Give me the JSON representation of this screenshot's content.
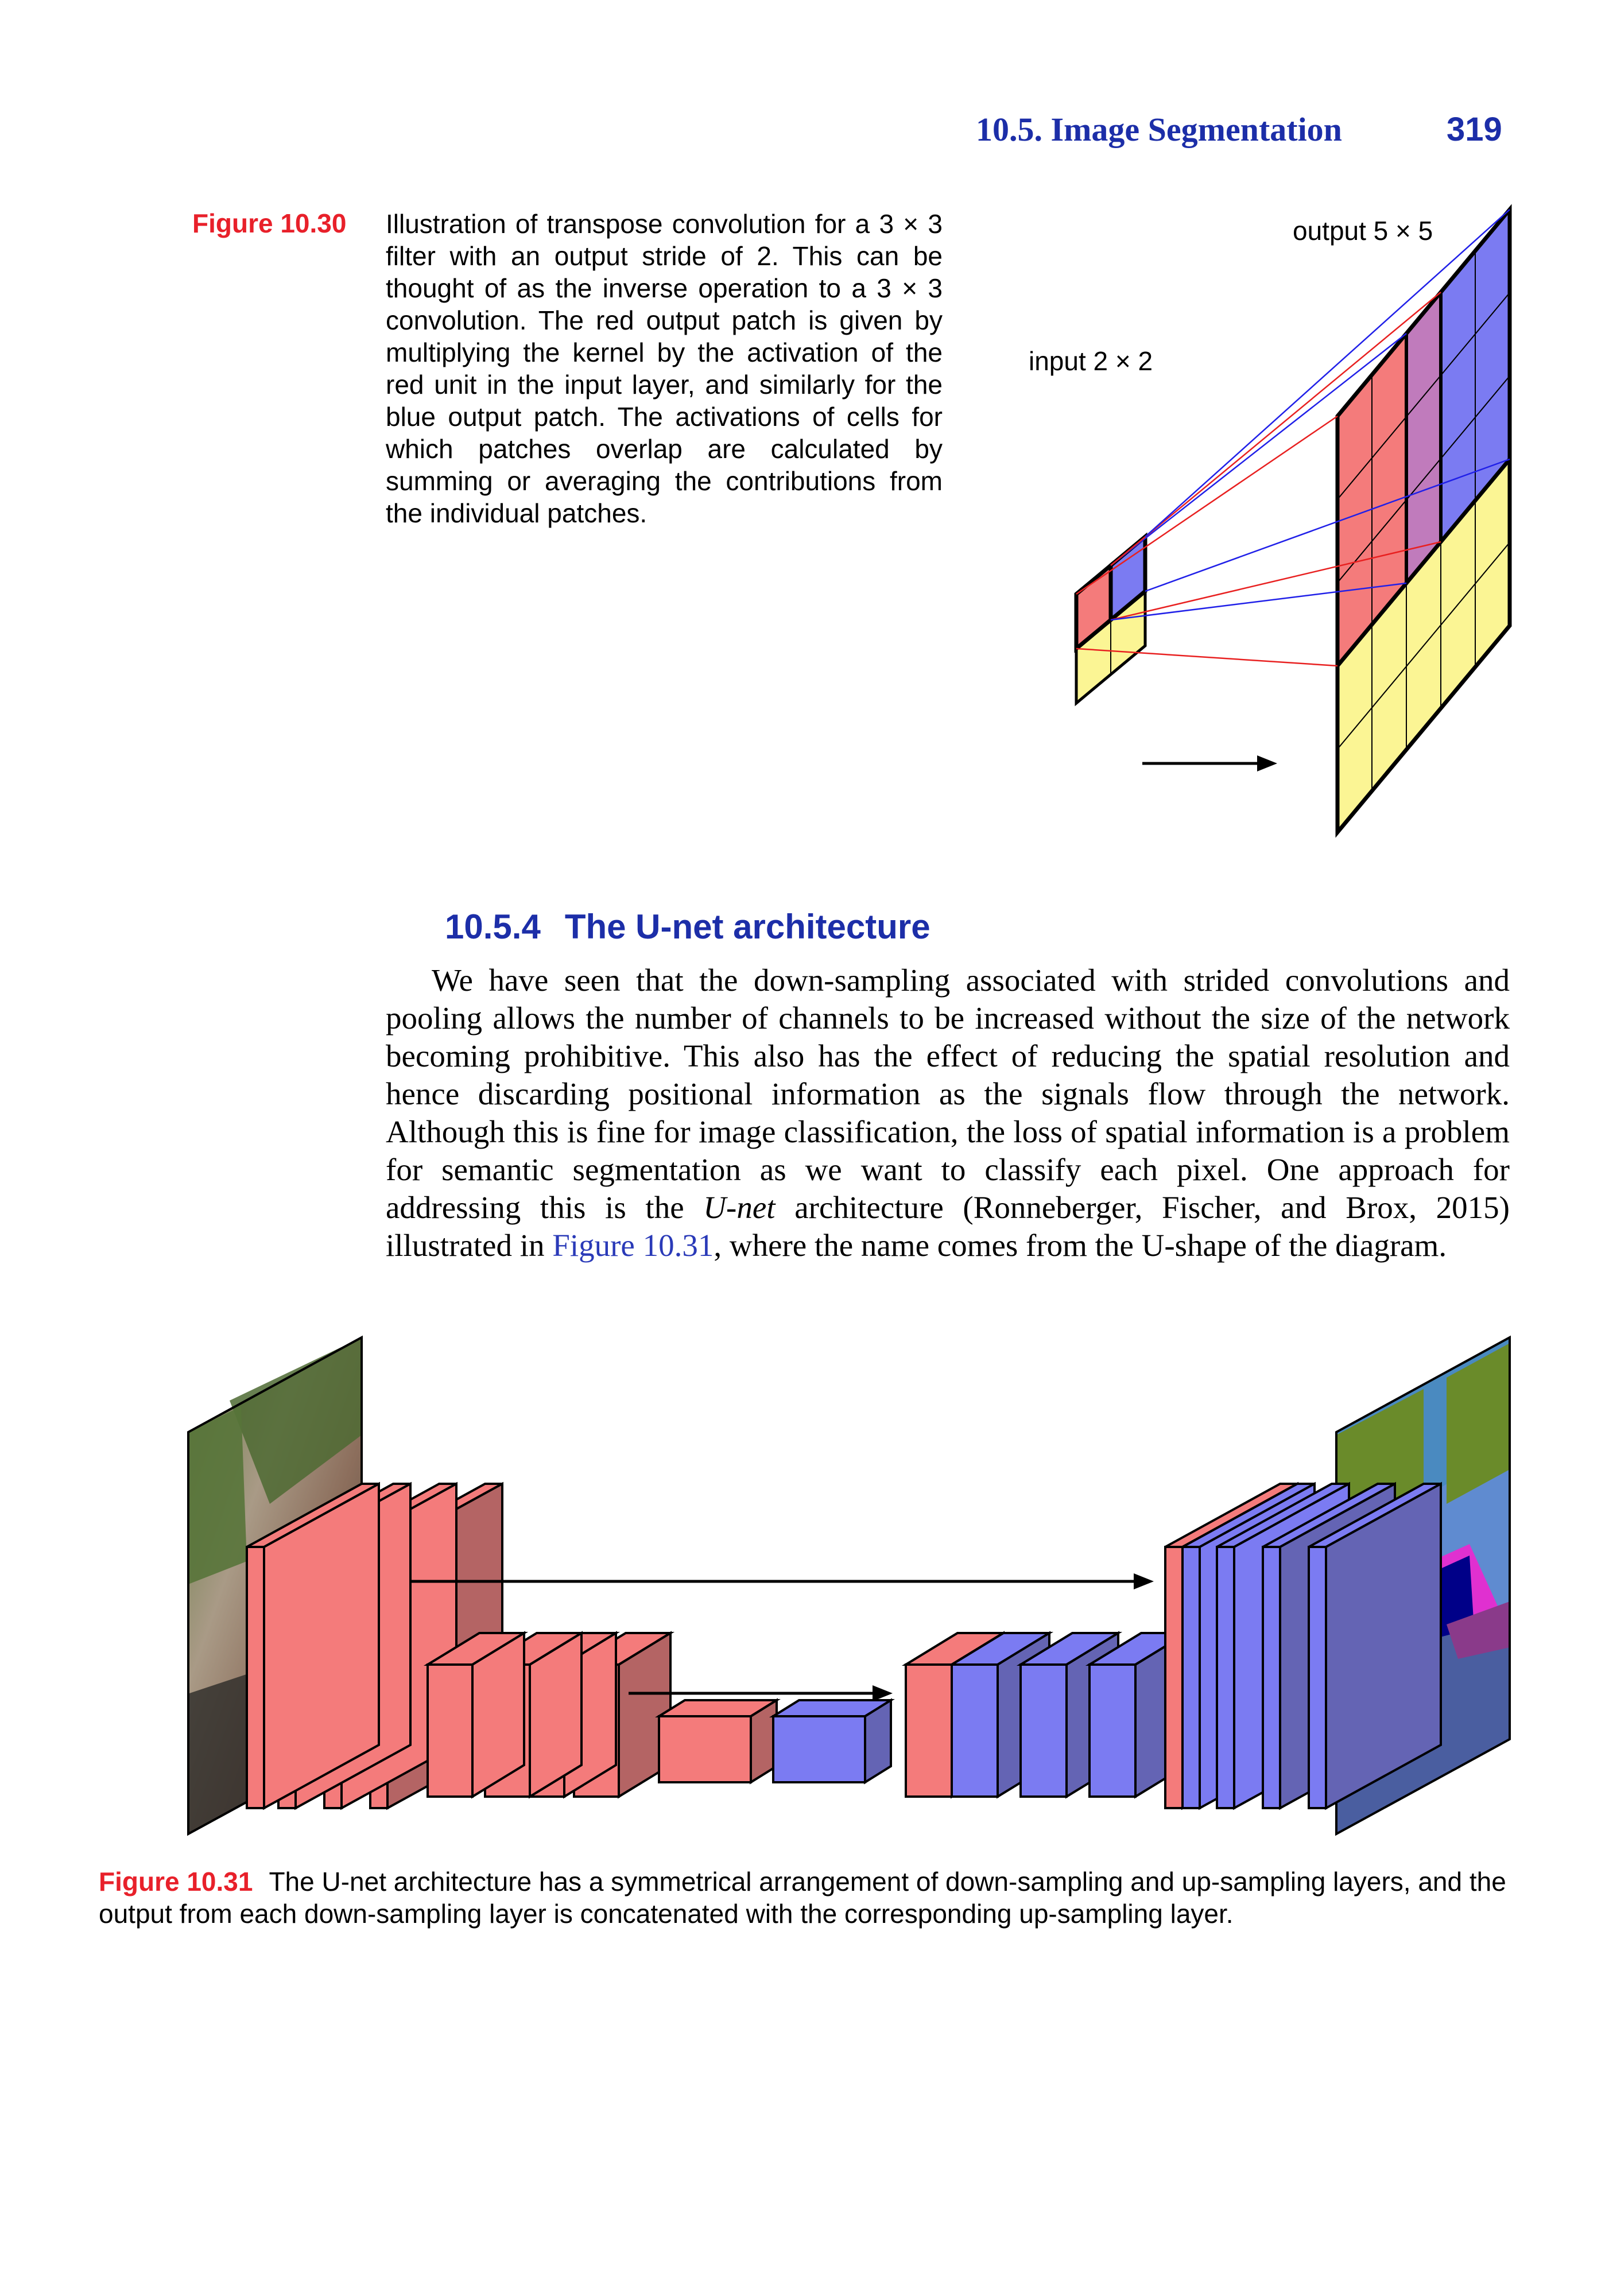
{
  "header": {
    "section_title": "10.5. Image Segmentation",
    "page_number": "319"
  },
  "figure_30": {
    "label": "Figure 10.30",
    "caption": "Illustration of transpose convolution for a 3 × 3 filter with an output stride of 2. This can be thought of as the inverse operation to a 3 × 3 convolution. The red output patch is given by multiplying the kernel by the activation of the red unit in the input layer, and similarly for the blue output patch. The activations of cells for which patches overlap are calculated by summing or averaging the contributions from the individual patches.",
    "input_label": "input 2 × 2",
    "output_label": "output 5 × 5",
    "colors": {
      "red": "#f47b7b",
      "blue": "#7b7bf2",
      "overlap": "#c07bbc",
      "yellow": "#fbf594"
    }
  },
  "section": {
    "number": "10.5.4",
    "title": "The U-net architecture"
  },
  "body": {
    "part1": "We have seen that the down-sampling associated with strided convolutions and pooling allows the number of channels to be increased without the size of the network becoming prohibitive. This also has the effect of reducing the spatial resolution and hence discarding positional information as the signals flow through the network. Although this is fine for image classification, the loss of spatial information is a problem for semantic segmentation as we want to classify each pixel. One approach for addressing this is the ",
    "emph": "U-net",
    "part2": " architecture (Ronneberger, Fischer, and Brox, 2015) illustrated in ",
    "link": "Figure 10.31",
    "part3": ", where the name comes from the U-shape of the diagram."
  },
  "figure_31": {
    "label": "Figure 10.31",
    "caption": "The U-net architecture has a symmetrical arrangement of down-sampling and up-sampling layers, and the output from each down-sampling layer is concatenated with the corresponding up-sampling layer.",
    "colors": {
      "red": "#f47b7b",
      "red_dark": "#b46464",
      "blue": "#7b7bf2",
      "blue_dark": "#6464b4"
    }
  }
}
